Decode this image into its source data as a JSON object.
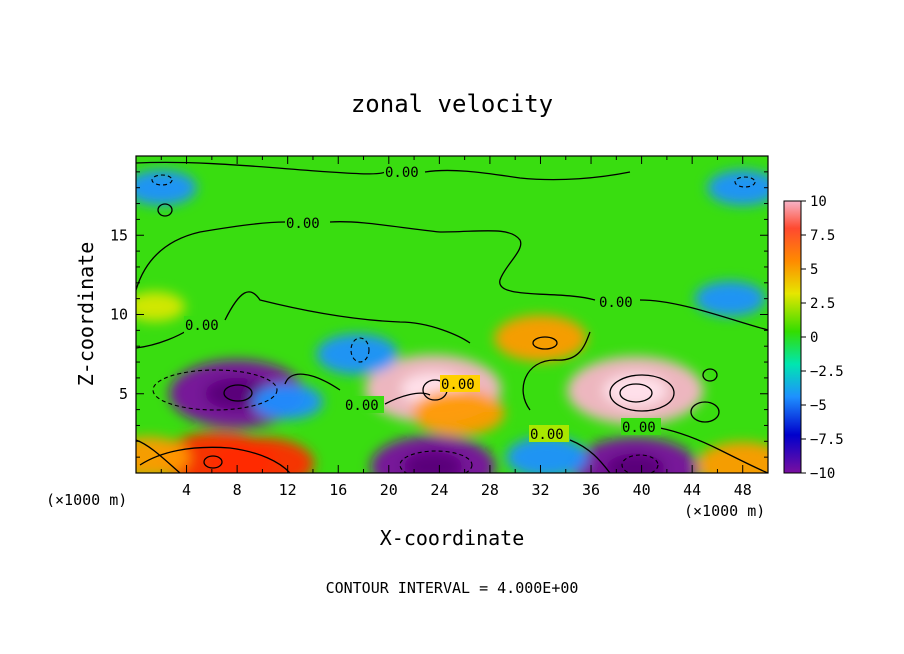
{
  "chart_data": {
    "type": "heatmap",
    "title": "zonal velocity",
    "xlabel": "X-coordinate",
    "ylabel": "Z-coordinate",
    "x_unit_left": "(×1000 m)",
    "x_unit_right": "(×1000 m)",
    "xlim": [
      0,
      50
    ],
    "ylim": [
      0,
      20
    ],
    "x_ticks": [
      4,
      8,
      12,
      16,
      20,
      24,
      28,
      32,
      36,
      40,
      44,
      48
    ],
    "y_ticks": [
      5,
      10,
      15
    ],
    "colorbar": {
      "min": -10,
      "max": 10,
      "ticks": [
        10,
        7.5,
        5,
        2.5,
        0,
        -2.5,
        -5,
        -7.5,
        -10
      ],
      "tick_labels": [
        "10",
        "7.5",
        "5",
        "2.5",
        "0",
        "−2.5",
        "−5",
        "−7.5",
        "−10"
      ],
      "colors": [
        "#f5a5c0",
        "#ff2a00",
        "#ff8000",
        "#e6e600",
        "#33dd00",
        "#00e6b0",
        "#1e90ff",
        "#0000cc",
        "#7a0fa0"
      ]
    },
    "contour_interval_text": "CONTOUR INTERVAL = 4.000E+00",
    "contour_labels": [
      "0.00",
      "0.00",
      "0.00",
      "0.00",
      "0.00",
      "0.00",
      "0.00",
      "0.00"
    ],
    "features": [
      {
        "x": 8.0,
        "z": 5.0,
        "value": -10
      },
      {
        "x": 6.5,
        "z": 0.8,
        "value": 8
      },
      {
        "x": 10.0,
        "z": 0.6,
        "value": 7
      },
      {
        "x": 23.5,
        "z": 5.3,
        "value": 10
      },
      {
        "x": 25.5,
        "z": 3.8,
        "value": 6
      },
      {
        "x": 39.5,
        "z": 5.2,
        "value": 10
      },
      {
        "x": 23.5,
        "z": 0.4,
        "value": -9
      },
      {
        "x": 39.5,
        "z": 0.3,
        "value": -9
      },
      {
        "x": 12.0,
        "z": 4.5,
        "value": -4
      },
      {
        "x": 17.5,
        "z": 7.5,
        "value": -5
      },
      {
        "x": 2.0,
        "z": 18.0,
        "value": -4
      },
      {
        "x": 48.0,
        "z": 18.0,
        "value": -4
      },
      {
        "x": 47.0,
        "z": 11.0,
        "value": -4
      },
      {
        "x": 1.5,
        "z": 10.5,
        "value": 3
      },
      {
        "x": 32.0,
        "z": 8.5,
        "value": 6
      },
      {
        "x": 48.0,
        "z": 0.5,
        "value": 6
      },
      {
        "x": 32.5,
        "z": 1.0,
        "value": -5
      },
      {
        "x": 1.0,
        "z": 1.0,
        "value": 5
      }
    ]
  }
}
